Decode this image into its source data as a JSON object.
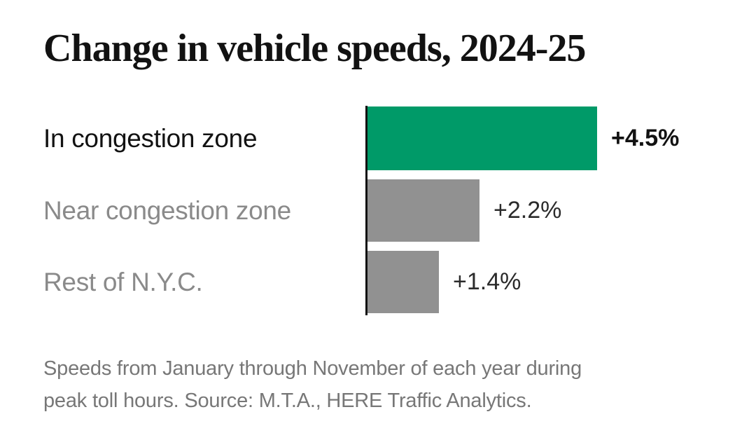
{
  "title": "Change in vehicle speeds, 2024-25",
  "chart_data": {
    "type": "bar",
    "orientation": "horizontal",
    "title": "Change in vehicle speeds, 2024-25",
    "categories": [
      "In congestion zone",
      "Near congestion zone",
      "Rest of N.Y.C."
    ],
    "values": [
      4.5,
      2.2,
      1.4
    ],
    "value_labels": [
      "+4.5%",
      "+2.2%",
      "+1.4%"
    ],
    "bar_colors": [
      "#009a68",
      "#919191",
      "#919191"
    ],
    "label_colors": [
      "#121212",
      "#8a8a8a",
      "#8a8a8a"
    ],
    "emphasis": [
      true,
      false,
      false
    ],
    "xlim": [
      0,
      4.5
    ],
    "xlabel": "",
    "ylabel": "",
    "grid": false,
    "legend": false
  },
  "footnote": {
    "line1": "Speeds from January through November of each year during",
    "line2": "peak toll hours. Source: M.T.A., HERE Traffic Analytics."
  },
  "colors": {
    "accent_green": "#009a68",
    "bar_gray": "#919191",
    "text_dark": "#121212",
    "text_gray": "#8a8a8a",
    "footnote_gray": "#777777",
    "axis_black": "#121212",
    "background": "#ffffff"
  }
}
